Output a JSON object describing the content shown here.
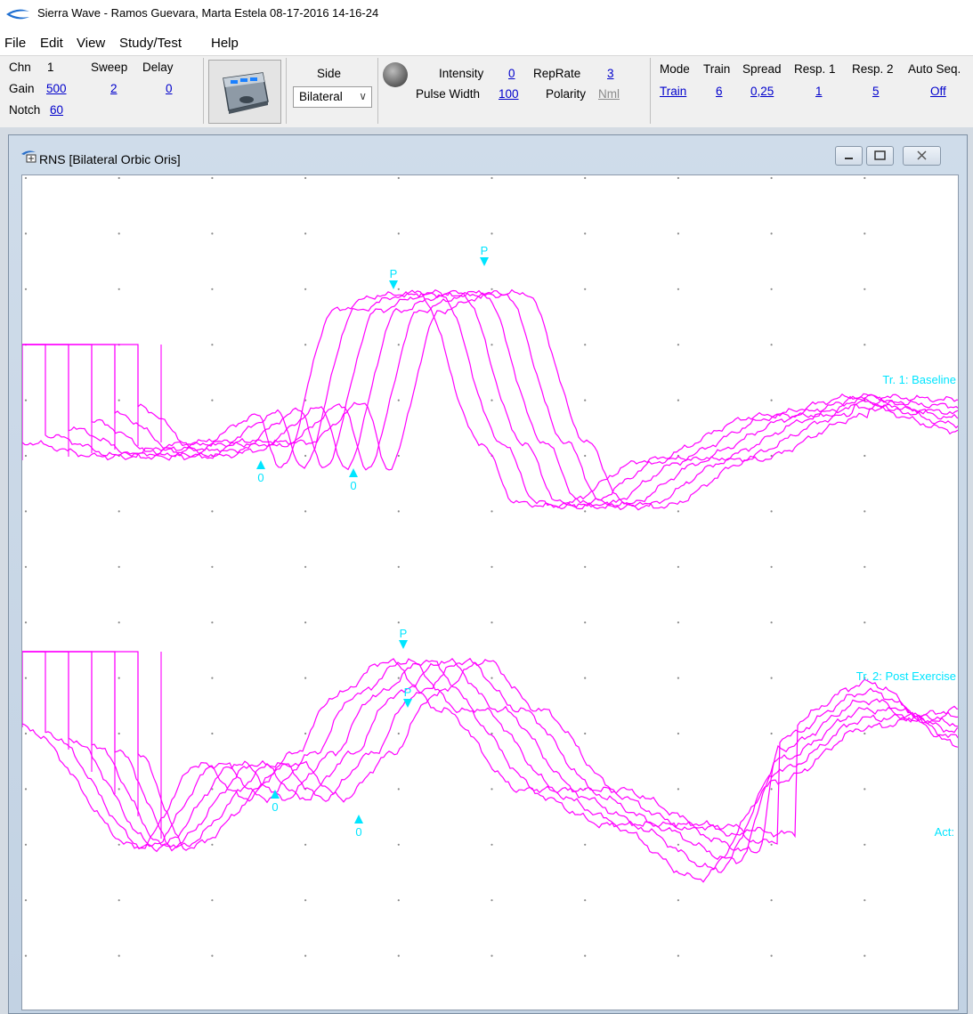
{
  "titlebar": {
    "title": "Sierra Wave - Ramos Guevara, Marta Estela 08-17-2016 14-16-24"
  },
  "menu": [
    "File",
    "Edit",
    "View",
    "Study/Test",
    "Help"
  ],
  "toolbar": {
    "chn_label": "Chn",
    "chn_value": "1",
    "sweep_label": "Sweep",
    "sweep_value": "2",
    "delay_label": "Delay",
    "delay_value": "0",
    "gain_label": "Gain",
    "gain_value": "500",
    "notch_label": "Notch",
    "notch_value": "60",
    "side_label": "Side",
    "side_value": "Bilateral",
    "intensity_label": "Intensity",
    "intensity_value": "0",
    "pulse_width_label": "Pulse Width",
    "pulse_width_value": "100",
    "reprate_label": "RepRate",
    "reprate_value": "3",
    "polarity_label": "Polarity",
    "polarity_value": "Nml",
    "mode_label": "Mode",
    "mode_value": "Train",
    "train_label": "Train",
    "train_value": "6",
    "spread_label": "Spread",
    "spread_value": "0,25",
    "resp1_label": "Resp. 1",
    "resp1_value": "1",
    "resp2_label": "Resp. 2",
    "resp2_value": "5",
    "autoseq_label": "Auto Seq.",
    "autoseq_value": "Off"
  },
  "child_window": {
    "title": "RNS [Bilateral Orbic Oris]"
  },
  "traces": {
    "color": "#ff00ff",
    "marker_color": "#00e5ff",
    "trace1_label": "Tr. 1: Baseline",
    "trace2_label": "Tr. 2: Post Exercise",
    "act_label": "Act:",
    "markers": [
      {
        "text": "P"
      },
      {
        "text": "P"
      },
      {
        "text": "0"
      },
      {
        "text": "0"
      },
      {
        "text": "P"
      },
      {
        "text": "P"
      },
      {
        "text": "0"
      },
      {
        "text": "0"
      }
    ]
  }
}
